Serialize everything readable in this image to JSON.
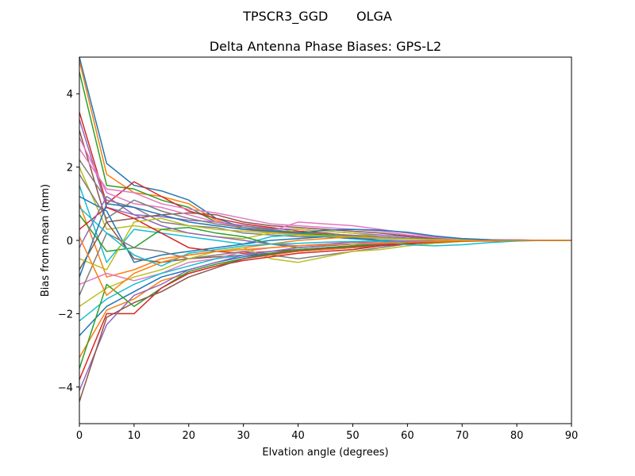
{
  "figure": {
    "suptitle": "TPSCR3_GGD       OLGA"
  },
  "chart_data": {
    "type": "line",
    "title": "Delta Antenna Phase Biases: GPS-L2",
    "xlabel": "Elvation angle (degrees)",
    "ylabel": "Bias from mean (mm)",
    "xlim": [
      0,
      90
    ],
    "ylim": [
      -5,
      5
    ],
    "xticks": [
      0,
      10,
      20,
      30,
      40,
      50,
      60,
      70,
      80,
      90
    ],
    "yticks": [
      -4,
      -2,
      0,
      2,
      4
    ],
    "grid": false,
    "legend": "none",
    "x": [
      0,
      5,
      10,
      15,
      20,
      25,
      30,
      35,
      40,
      45,
      50,
      55,
      60,
      65,
      70,
      75,
      80,
      85,
      90
    ],
    "colors": [
      "#1f77b4",
      "#ff7f0e",
      "#2ca02c",
      "#d62728",
      "#9467bd",
      "#8c564b",
      "#e377c2",
      "#7f7f7f",
      "#bcbd22",
      "#17becf"
    ],
    "series": [
      {
        "values": [
          5.0,
          2.1,
          1.5,
          1.35,
          1.1,
          0.6,
          0.35,
          0.2,
          0.15,
          0.1,
          0.08,
          0.05,
          0.04,
          0.03,
          0.02,
          0.01,
          0.01,
          0.0,
          0.0
        ]
      },
      {
        "values": [
          4.9,
          1.8,
          1.3,
          1.2,
          1.0,
          0.55,
          0.3,
          0.22,
          0.18,
          0.12,
          0.1,
          0.06,
          0.05,
          0.03,
          0.02,
          0.01,
          0.0,
          0.0,
          0.0
        ]
      },
      {
        "values": [
          4.6,
          1.5,
          1.4,
          1.1,
          0.9,
          0.5,
          0.4,
          0.3,
          0.2,
          0.15,
          0.1,
          0.08,
          0.06,
          0.04,
          0.02,
          0.01,
          0.0,
          0.0,
          0.0
        ]
      },
      {
        "values": [
          3.5,
          1.0,
          1.6,
          1.2,
          0.8,
          0.6,
          0.45,
          0.35,
          0.25,
          0.2,
          0.12,
          0.1,
          0.06,
          0.04,
          0.02,
          0.01,
          0.01,
          0.0,
          0.0
        ]
      },
      {
        "values": [
          3.3,
          0.9,
          0.7,
          0.65,
          0.55,
          0.5,
          0.4,
          0.32,
          0.3,
          0.25,
          0.2,
          0.15,
          0.1,
          0.05,
          0.03,
          0.01,
          0.0,
          0.0,
          0.0
        ]
      },
      {
        "values": [
          3.0,
          0.5,
          0.6,
          0.7,
          0.75,
          0.7,
          0.5,
          0.4,
          0.35,
          0.3,
          0.25,
          0.2,
          0.12,
          0.05,
          0.02,
          0.01,
          0.0,
          0.0,
          0.0
        ]
      },
      {
        "values": [
          2.8,
          1.3,
          1.0,
          0.9,
          0.7,
          0.5,
          0.35,
          0.25,
          0.5,
          0.45,
          0.4,
          0.3,
          0.2,
          0.1,
          0.05,
          0.02,
          0.01,
          0.0,
          0.0
        ]
      },
      {
        "values": [
          2.2,
          1.1,
          0.9,
          0.5,
          0.4,
          0.35,
          0.2,
          0.15,
          0.1,
          0.1,
          0.05,
          0.05,
          0.03,
          0.02,
          0.01,
          0.0,
          0.0,
          0.0,
          0.0
        ]
      },
      {
        "values": [
          2.0,
          0.3,
          0.4,
          0.3,
          0.2,
          0.1,
          0.05,
          0.2,
          0.3,
          0.25,
          0.2,
          0.1,
          0.05,
          0.02,
          0.01,
          0.0,
          0.0,
          0.0,
          0.0
        ]
      },
      {
        "values": [
          1.5,
          -0.6,
          0.3,
          0.2,
          0.1,
          0.0,
          -0.1,
          0.1,
          0.15,
          0.1,
          0.05,
          0.0,
          -0.05,
          -0.05,
          -0.02,
          -0.01,
          0.0,
          0.0,
          0.0
        ]
      },
      {
        "values": [
          1.2,
          0.8,
          -0.6,
          -0.4,
          -0.3,
          -0.2,
          -0.1,
          0.0,
          0.05,
          0.1,
          0.05,
          0.0,
          -0.02,
          -0.02,
          -0.01,
          0.0,
          0.0,
          0.0,
          0.0
        ]
      },
      {
        "values": [
          1.0,
          -1.0,
          -0.8,
          -0.5,
          -0.4,
          -0.3,
          -0.2,
          -0.1,
          0.0,
          0.05,
          0.1,
          0.08,
          0.05,
          0.02,
          0.01,
          0.0,
          0.0,
          0.0,
          0.0
        ]
      },
      {
        "values": [
          0.7,
          -0.3,
          -0.2,
          0.3,
          0.35,
          0.2,
          0.1,
          -0.1,
          -0.2,
          -0.15,
          -0.1,
          -0.05,
          -0.02,
          -0.01,
          0.0,
          0.0,
          0.0,
          0.0,
          0.0
        ]
      },
      {
        "values": [
          0.3,
          0.9,
          0.6,
          0.2,
          -0.2,
          -0.3,
          -0.35,
          -0.3,
          -0.25,
          -0.2,
          -0.15,
          -0.1,
          -0.05,
          -0.02,
          -0.01,
          0.0,
          0.0,
          0.0,
          0.0
        ]
      },
      {
        "values": [
          -0.2,
          1.2,
          0.7,
          0.4,
          0.2,
          0.1,
          0.0,
          -0.1,
          -0.15,
          -0.1,
          -0.05,
          -0.05,
          -0.02,
          -0.01,
          0.0,
          0.0,
          0.0,
          0.0,
          0.0
        ]
      },
      {
        "values": [
          -0.8,
          0.5,
          -0.5,
          -0.6,
          -0.5,
          -0.45,
          -0.4,
          -0.35,
          -0.3,
          -0.25,
          -0.2,
          -0.15,
          -0.1,
          -0.05,
          -0.02,
          -0.01,
          0.0,
          0.0,
          0.0
        ]
      },
      {
        "values": [
          -1.2,
          -0.9,
          -1.1,
          -0.9,
          -0.6,
          -0.5,
          -0.3,
          -0.2,
          -0.15,
          -0.1,
          -0.1,
          -0.05,
          -0.05,
          -0.02,
          -0.01,
          0.0,
          0.0,
          0.0,
          0.0
        ]
      },
      {
        "values": [
          -1.5,
          0.2,
          -0.2,
          -0.3,
          -0.5,
          -0.4,
          -0.3,
          -0.4,
          -0.5,
          -0.4,
          -0.3,
          -0.2,
          -0.1,
          -0.05,
          -0.02,
          0.0,
          0.0,
          0.0,
          0.0
        ]
      },
      {
        "values": [
          -1.8,
          -1.3,
          -1.0,
          -0.8,
          -0.5,
          -0.3,
          -0.2,
          -0.5,
          -0.6,
          -0.45,
          -0.3,
          -0.25,
          -0.15,
          -0.08,
          -0.03,
          -0.01,
          0.0,
          0.0,
          0.0
        ]
      },
      {
        "values": [
          -2.2,
          -1.6,
          -1.2,
          -0.9,
          -0.7,
          -0.5,
          -0.4,
          -0.3,
          -0.2,
          -0.15,
          -0.1,
          -0.1,
          -0.05,
          -0.03,
          -0.01,
          0.0,
          0.0,
          0.0,
          0.0
        ]
      },
      {
        "values": [
          -2.6,
          -1.8,
          -1.4,
          -1.0,
          -0.8,
          -0.6,
          -0.45,
          -0.35,
          -0.3,
          -0.2,
          -0.15,
          -0.1,
          -0.08,
          -0.04,
          -0.02,
          -0.01,
          0.0,
          0.0,
          0.0
        ]
      },
      {
        "values": [
          -3.2,
          -1.9,
          -1.6,
          -1.1,
          -0.9,
          -0.7,
          -0.5,
          -0.4,
          -0.3,
          -0.25,
          -0.2,
          -0.12,
          -0.08,
          -0.05,
          -0.02,
          -0.01,
          0.0,
          0.0,
          0.0
        ]
      },
      {
        "values": [
          -3.5,
          -1.2,
          -1.8,
          -1.3,
          -0.85,
          -0.65,
          -0.5,
          -0.35,
          -0.25,
          -0.2,
          -0.15,
          -0.1,
          -0.06,
          -0.03,
          -0.01,
          0.0,
          0.0,
          0.0,
          0.0
        ]
      },
      {
        "values": [
          -3.8,
          -2.0,
          -2.0,
          -1.3,
          -0.9,
          -0.7,
          -0.55,
          -0.45,
          -0.35,
          -0.3,
          -0.25,
          -0.15,
          -0.1,
          -0.05,
          -0.02,
          -0.01,
          0.0,
          0.0,
          0.0
        ]
      },
      {
        "values": [
          -4.1,
          -2.3,
          -1.5,
          -1.2,
          -0.8,
          -0.6,
          -0.4,
          -0.3,
          -0.2,
          -0.15,
          -0.1,
          -0.08,
          -0.05,
          -0.03,
          -0.01,
          0.0,
          0.0,
          0.0,
          0.0
        ]
      },
      {
        "values": [
          -4.4,
          -2.1,
          -1.7,
          -1.4,
          -1.0,
          -0.75,
          -0.5,
          -0.38,
          -0.28,
          -0.22,
          -0.18,
          -0.12,
          -0.07,
          -0.04,
          -0.02,
          -0.01,
          0.0,
          0.0,
          0.0
        ]
      },
      {
        "values": [
          2.5,
          1.4,
          1.3,
          1.0,
          0.85,
          0.75,
          0.6,
          0.45,
          0.4,
          0.35,
          0.3,
          0.25,
          0.15,
          0.08,
          0.03,
          0.01,
          0.0,
          0.0,
          0.0
        ]
      },
      {
        "values": [
          1.8,
          0.6,
          1.1,
          0.8,
          0.6,
          0.45,
          0.35,
          0.28,
          0.22,
          0.18,
          0.14,
          0.1,
          0.06,
          0.03,
          0.01,
          0.0,
          0.0,
          0.0,
          0.0
        ]
      },
      {
        "values": [
          -0.5,
          -0.8,
          0.5,
          0.6,
          0.4,
          0.3,
          0.25,
          0.2,
          0.15,
          0.12,
          0.1,
          0.06,
          0.04,
          0.02,
          0.01,
          0.0,
          0.0,
          0.0,
          0.0
        ]
      },
      {
        "values": [
          0.9,
          0.2,
          -0.4,
          -0.7,
          -0.35,
          -0.25,
          -0.15,
          -0.1,
          -0.08,
          -0.05,
          -0.03,
          -0.02,
          -0.12,
          -0.15,
          -0.12,
          -0.06,
          -0.02,
          0.0,
          0.0
        ]
      },
      {
        "values": [
          -1.0,
          1.0,
          0.9,
          0.7,
          0.5,
          0.4,
          0.3,
          0.25,
          0.2,
          0.28,
          0.3,
          0.28,
          0.22,
          0.12,
          0.05,
          0.02,
          0.0,
          0.0,
          0.0
        ]
      },
      {
        "values": [
          0.1,
          -1.5,
          -0.9,
          -0.6,
          -0.4,
          -0.3,
          -0.25,
          -0.2,
          -0.15,
          -0.12,
          -0.1,
          -0.08,
          -0.05,
          -0.03,
          -0.01,
          0.0,
          0.0,
          0.0,
          0.0
        ]
      }
    ]
  }
}
